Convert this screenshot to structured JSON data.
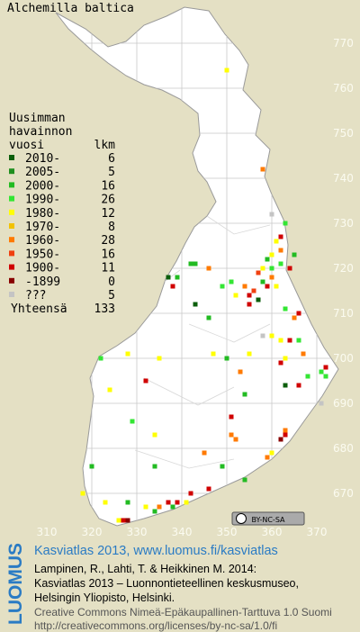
{
  "title": "Alchemilla baltica",
  "map": {
    "xticks": [
      310,
      320,
      330,
      340,
      350,
      360,
      370
    ],
    "yticks": [
      670,
      680,
      690,
      700,
      710,
      720,
      730,
      740,
      750,
      760,
      770
    ],
    "observations": [
      {
        "x": 350,
        "y": 764,
        "class": 4
      },
      {
        "x": 358,
        "y": 742,
        "class": 6
      },
      {
        "x": 360,
        "y": 732,
        "class": 10
      },
      {
        "x": 363,
        "y": 730,
        "class": 3
      },
      {
        "x": 362,
        "y": 727,
        "class": 8
      },
      {
        "x": 361,
        "y": 726,
        "class": 4
      },
      {
        "x": 362,
        "y": 724,
        "class": 6
      },
      {
        "x": 365,
        "y": 723,
        "class": 2
      },
      {
        "x": 360,
        "y": 723,
        "class": 4
      },
      {
        "x": 359,
        "y": 722,
        "class": 2
      },
      {
        "x": 362,
        "y": 721,
        "class": 3
      },
      {
        "x": 360,
        "y": 720,
        "class": 3
      },
      {
        "x": 358,
        "y": 720,
        "class": 4
      },
      {
        "x": 364,
        "y": 720,
        "class": 8
      },
      {
        "x": 357,
        "y": 719,
        "class": 7
      },
      {
        "x": 360,
        "y": 718,
        "class": 6
      },
      {
        "x": 358,
        "y": 717,
        "class": 2
      },
      {
        "x": 359,
        "y": 716,
        "class": 8
      },
      {
        "x": 361,
        "y": 716,
        "class": 4
      },
      {
        "x": 356,
        "y": 715,
        "class": 7
      },
      {
        "x": 357,
        "y": 713,
        "class": 0
      },
      {
        "x": 355,
        "y": 712,
        "class": 8
      },
      {
        "x": 337,
        "y": 718,
        "class": 0
      },
      {
        "x": 338,
        "y": 716,
        "class": 8
      },
      {
        "x": 339,
        "y": 718,
        "class": 2
      },
      {
        "x": 342,
        "y": 721,
        "class": 2
      },
      {
        "x": 343,
        "y": 721,
        "class": 2
      },
      {
        "x": 346,
        "y": 720,
        "class": 6
      },
      {
        "x": 349,
        "y": 716,
        "class": 3
      },
      {
        "x": 351,
        "y": 717,
        "class": 3
      },
      {
        "x": 352,
        "y": 714,
        "class": 4
      },
      {
        "x": 354,
        "y": 716,
        "class": 6
      },
      {
        "x": 355,
        "y": 714,
        "class": 8
      },
      {
        "x": 343,
        "y": 712,
        "class": 0
      },
      {
        "x": 346,
        "y": 709,
        "class": 2
      },
      {
        "x": 350,
        "y": 700,
        "class": 2
      },
      {
        "x": 347,
        "y": 701,
        "class": 4
      },
      {
        "x": 353,
        "y": 697,
        "class": 6
      },
      {
        "x": 354,
        "y": 692,
        "class": 2
      },
      {
        "x": 351,
        "y": 687,
        "class": 8
      },
      {
        "x": 355,
        "y": 701,
        "class": 4
      },
      {
        "x": 358,
        "y": 705,
        "class": 10
      },
      {
        "x": 360,
        "y": 705,
        "class": 4
      },
      {
        "x": 362,
        "y": 704,
        "class": 4
      },
      {
        "x": 364,
        "y": 704,
        "class": 8
      },
      {
        "x": 366,
        "y": 710,
        "class": 8
      },
      {
        "x": 365,
        "y": 709,
        "class": 6
      },
      {
        "x": 363,
        "y": 711,
        "class": 3
      },
      {
        "x": 366,
        "y": 704,
        "class": 3
      },
      {
        "x": 367,
        "y": 701,
        "class": 6
      },
      {
        "x": 363,
        "y": 700,
        "class": 4
      },
      {
        "x": 362,
        "y": 699,
        "class": 8
      },
      {
        "x": 368,
        "y": 696,
        "class": 3
      },
      {
        "x": 363,
        "y": 694,
        "class": 0
      },
      {
        "x": 366,
        "y": 694,
        "class": 8
      },
      {
        "x": 371,
        "y": 697,
        "class": 3
      },
      {
        "x": 372,
        "y": 696,
        "class": 3
      },
      {
        "x": 372,
        "y": 698,
        "class": 8
      },
      {
        "x": 371,
        "y": 690,
        "class": 10
      },
      {
        "x": 363,
        "y": 684,
        "class": 6
      },
      {
        "x": 363,
        "y": 683,
        "class": 8
      },
      {
        "x": 362,
        "y": 682,
        "class": 9
      },
      {
        "x": 360,
        "y": 679,
        "class": 4
      },
      {
        "x": 359,
        "y": 678,
        "class": 6
      },
      {
        "x": 351,
        "y": 683,
        "class": 6
      },
      {
        "x": 352,
        "y": 682,
        "class": 6
      },
      {
        "x": 349,
        "y": 676,
        "class": 2
      },
      {
        "x": 346,
        "y": 671,
        "class": 8
      },
      {
        "x": 342,
        "y": 670,
        "class": 8
      },
      {
        "x": 341,
        "y": 668,
        "class": 4
      },
      {
        "x": 339,
        "y": 668,
        "class": 8
      },
      {
        "x": 337,
        "y": 668,
        "class": 8
      },
      {
        "x": 335,
        "y": 667,
        "class": 6
      },
      {
        "x": 338,
        "y": 667,
        "class": 2
      },
      {
        "x": 334,
        "y": 666,
        "class": 2
      },
      {
        "x": 332,
        "y": 667,
        "class": 4
      },
      {
        "x": 328,
        "y": 668,
        "class": 2
      },
      {
        "x": 326,
        "y": 664,
        "class": 4
      },
      {
        "x": 323,
        "y": 668,
        "class": 4
      },
      {
        "x": 318,
        "y": 670,
        "class": 4
      },
      {
        "x": 320,
        "y": 676,
        "class": 2
      },
      {
        "x": 334,
        "y": 676,
        "class": 2
      },
      {
        "x": 332,
        "y": 695,
        "class": 8
      },
      {
        "x": 335,
        "y": 700,
        "class": 4
      },
      {
        "x": 328,
        "y": 701,
        "class": 4
      },
      {
        "x": 324,
        "y": 693,
        "class": 4
      },
      {
        "x": 322,
        "y": 700,
        "class": 3
      },
      {
        "x": 329,
        "y": 686,
        "class": 3
      },
      {
        "x": 334,
        "y": 683,
        "class": 4
      },
      {
        "x": 328,
        "y": 664,
        "class": 9
      },
      {
        "x": 327,
        "y": 664,
        "class": 8
      },
      {
        "x": 345,
        "y": 679,
        "class": 6
      },
      {
        "x": 354,
        "y": 673,
        "class": 2
      }
    ]
  },
  "legend": {
    "heading": [
      "Uusimman",
      "havainnon",
      "vuosi"
    ],
    "count_heading": "lkm",
    "rows": [
      {
        "label": "2010-",
        "count": 6,
        "color": "#0b5e0b"
      },
      {
        "label": "2005-",
        "count": 5,
        "color": "#1f8f1f"
      },
      {
        "label": "2000-",
        "count": 16,
        "color": "#22bb22"
      },
      {
        "label": "1990-",
        "count": 26,
        "color": "#33e633"
      },
      {
        "label": "1980-",
        "count": 12,
        "color": "#ffff00"
      },
      {
        "label": "1970-",
        "count": 8,
        "color": "#f2c200"
      },
      {
        "label": "1960-",
        "count": 28,
        "color": "#ff7a00"
      },
      {
        "label": "1950-",
        "count": 16,
        "color": "#f04010"
      },
      {
        "label": "1900-",
        "count": 11,
        "color": "#d00000"
      },
      {
        "label": "-1899",
        "count": 0,
        "color": "#880000"
      },
      {
        "label": "???",
        "count": 5,
        "color": "#c4c4c4"
      }
    ],
    "total_label": "Yhteensä",
    "total": 133
  },
  "footer": {
    "logo": "LUOMUS",
    "badge": "BY-NC-SA",
    "link": "Kasviatlas 2013, www.luomus.fi/kasviatlas",
    "citation": [
      "Lampinen, R., Lahti, T. & Heikkinen M. 2014:",
      "Kasviatlas 2013 – Luonnontieteellinen keskusmuseo,",
      "Helsingin Yliopisto, Helsinki."
    ],
    "license": [
      "Creative Commons Nimeä-Epäkaupallinen-Tarttuva 1.0 Suomi",
      "http://creativecommons.org/licenses/by-nc-sa/1.0/fi"
    ]
  }
}
